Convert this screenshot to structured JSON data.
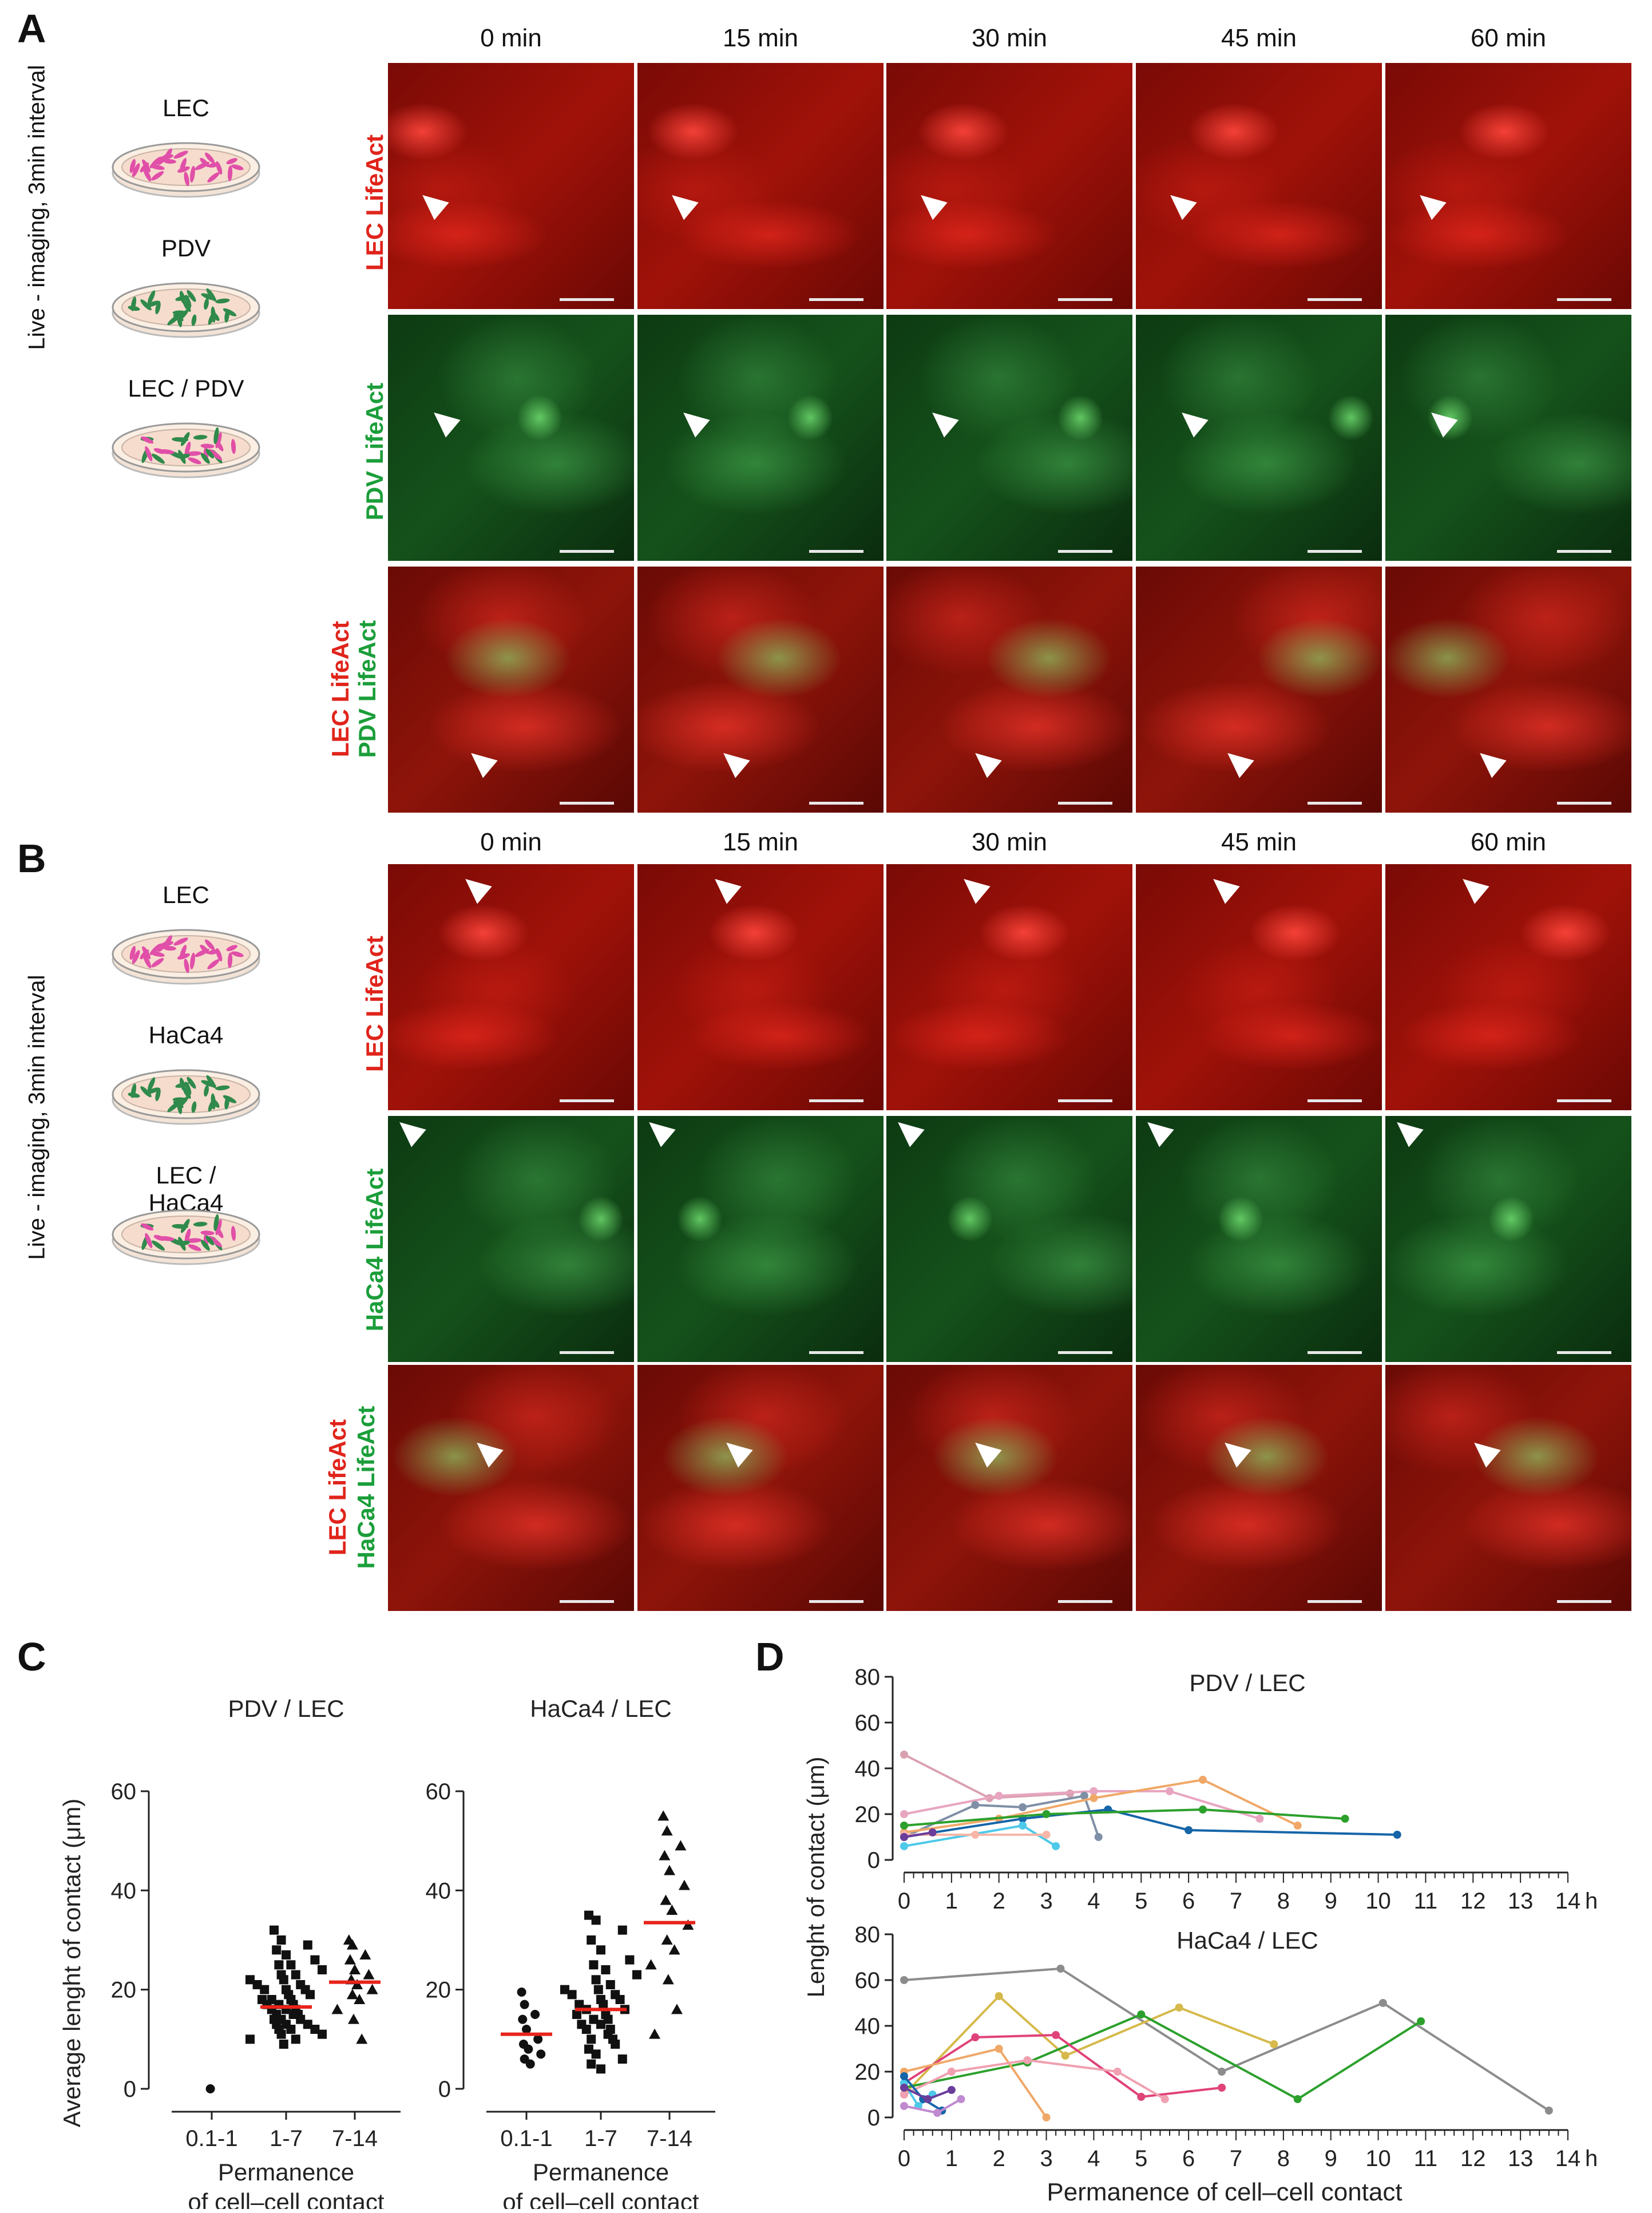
{
  "panels": {
    "A": {
      "label": "A",
      "side_caption": "Live - imaging, 3min interval",
      "dishes": [
        "LEC",
        "PDV",
        "LEC / PDV"
      ],
      "times": [
        "0 min",
        "15 min",
        "30 min",
        "45 min",
        "60 min"
      ],
      "rows": [
        {
          "label": "LEC LifeAct",
          "color": "#e0241b"
        },
        {
          "label": "PDV LifeAct",
          "color": "#1b9e3a"
        },
        {
          "label1": "LEC LifeAct",
          "label2": "PDV LifeAct",
          "color1": "#e0241b",
          "color2": "#1b9e3a"
        }
      ]
    },
    "B": {
      "label": "B",
      "side_caption": "Live - imaging, 3min interval",
      "dishes": [
        "LEC",
        "HaCa4",
        "LEC / HaCa4"
      ],
      "times": [
        "0 min",
        "15 min",
        "30 min",
        "45 min",
        "60 min"
      ],
      "rows": [
        {
          "label": "LEC LifeAct",
          "color": "#e0241b"
        },
        {
          "label": "HaCa4 LifeAct",
          "color": "#1b9e3a"
        },
        {
          "label1": "LEC LifeAct",
          "label2": "HaCa4 LifeAct",
          "color1": "#e0241b",
          "color2": "#1b9e3a"
        }
      ]
    },
    "C": {
      "label": "C"
    },
    "D": {
      "label": "D"
    }
  },
  "chart_data": [
    {
      "type": "scatter",
      "title": "PDV / LEC",
      "ylabel": "Average lenght of contact (μm)",
      "xlabel": "Permanence of cell–cell contact",
      "x_unit": "h",
      "categories": [
        "0.1-1",
        "1-7",
        "7-14"
      ],
      "ylim": [
        0,
        60
      ],
      "yticks": [
        0,
        20,
        40,
        60
      ],
      "means": [
        null,
        16.5,
        21.5
      ],
      "points": [
        [
          0
        ],
        [
          32,
          30,
          29,
          28,
          27,
          26,
          25,
          25,
          24,
          23,
          23,
          22,
          22,
          21,
          21,
          20,
          20,
          20,
          19,
          19,
          18,
          18,
          18,
          17,
          17,
          17,
          16,
          16,
          16,
          15,
          15,
          15,
          14,
          14,
          14,
          13,
          13,
          13,
          12,
          12,
          12,
          11,
          11,
          10,
          10,
          9
        ],
        [
          30,
          29,
          27,
          26,
          24,
          23,
          22,
          21,
          20,
          19,
          18,
          16,
          14,
          10
        ]
      ]
    },
    {
      "type": "scatter",
      "title": "HaCa4 / LEC",
      "xlabel": "Permanence of cell–cell contact",
      "x_unit": "h",
      "categories": [
        "0.1-1",
        "1-7",
        "7-14"
      ],
      "ylim": [
        0,
        60
      ],
      "yticks": [
        0,
        20,
        40,
        60
      ],
      "means": [
        11,
        16,
        33.5
      ],
      "points": [
        [
          19.5,
          17,
          15,
          14,
          12,
          10,
          9,
          8,
          7,
          6,
          5
        ],
        [
          35,
          34,
          32,
          30,
          28,
          26,
          25,
          24,
          23,
          22,
          21,
          20,
          20,
          19,
          19,
          18,
          18,
          17,
          17,
          16,
          16,
          15,
          15,
          14,
          14,
          13,
          13,
          12,
          12,
          11,
          10,
          10,
          9,
          8,
          7,
          6,
          5,
          4
        ],
        [
          55,
          52,
          49,
          47,
          44,
          41,
          38,
          36,
          33,
          30,
          28,
          25,
          22,
          16,
          11
        ]
      ]
    },
    {
      "type": "line",
      "title": "PDV / LEC",
      "ylim": [
        0,
        80
      ],
      "yticks": [
        0,
        20,
        40,
        60,
        80
      ],
      "xlim": [
        0,
        14
      ],
      "xticks": [
        0,
        1,
        2,
        3,
        4,
        5,
        6,
        7,
        8,
        9,
        10,
        11,
        12,
        13,
        14
      ],
      "x_unit": "h",
      "series": [
        {
          "color": "#d9a0b0",
          "x": [
            0,
            1.8,
            3.5
          ],
          "y": [
            46,
            27,
            29
          ]
        },
        {
          "color": "#e8a5c0",
          "x": [
            0,
            2,
            4,
            5.6,
            7.5
          ],
          "y": [
            20,
            28,
            30,
            30,
            18
          ]
        },
        {
          "color": "#7f8fa6",
          "x": [
            0,
            1.5,
            2.5,
            3.8,
            4.1
          ],
          "y": [
            10,
            24,
            23,
            28,
            10
          ]
        },
        {
          "color": "#f0a868",
          "x": [
            0,
            2,
            4,
            6.3,
            8.3
          ],
          "y": [
            12,
            18,
            27,
            35,
            15
          ]
        },
        {
          "color": "#1565a8",
          "x": [
            0,
            2.5,
            4.3,
            6,
            10.4
          ],
          "y": [
            10,
            18,
            22,
            13,
            11
          ]
        },
        {
          "color": "#2ca02c",
          "x": [
            0,
            3,
            6.3,
            9.3
          ],
          "y": [
            15,
            20,
            22,
            18
          ]
        },
        {
          "color": "#4ec9e9",
          "x": [
            0,
            2.5,
            3.2
          ],
          "y": [
            6,
            15,
            6
          ]
        },
        {
          "color": "#f7b6a8",
          "x": [
            0,
            1.5,
            3
          ],
          "y": [
            11,
            11,
            11
          ]
        },
        {
          "color": "#6a3d9a",
          "x": [
            0,
            0.6
          ],
          "y": [
            10,
            12
          ]
        }
      ]
    },
    {
      "type": "line",
      "title": "HaCa4 / LEC",
      "ylabel": "Lenght of contact (μm)",
      "xlabel": "Permanence of cell–cell contact",
      "ylim": [
        0,
        80
      ],
      "yticks": [
        0,
        20,
        40,
        60,
        80
      ],
      "xlim": [
        0,
        14
      ],
      "xticks": [
        0,
        1,
        2,
        3,
        4,
        5,
        6,
        7,
        8,
        9,
        10,
        11,
        12,
        13,
        14
      ],
      "x_unit": "h",
      "series": [
        {
          "color": "#8c8c8c",
          "x": [
            0,
            3.3,
            6.7,
            10.1,
            13.6
          ],
          "y": [
            60,
            65,
            20,
            50,
            3
          ]
        },
        {
          "color": "#d6b94a",
          "x": [
            0,
            2,
            3.4,
            5.8,
            7.8
          ],
          "y": [
            10,
            53,
            27,
            48,
            32
          ]
        },
        {
          "color": "#2ca02c",
          "x": [
            0,
            2.6,
            5,
            8.3,
            10.9
          ],
          "y": [
            13,
            24,
            45,
            8,
            42
          ]
        },
        {
          "color": "#e0427a",
          "x": [
            0,
            1.5,
            3.2,
            5,
            6.7
          ],
          "y": [
            15,
            35,
            36,
            9,
            13
          ]
        },
        {
          "color": "#f0a868",
          "x": [
            0,
            2,
            3
          ],
          "y": [
            20,
            30,
            0
          ]
        },
        {
          "color": "#f0a0b0",
          "x": [
            0,
            1,
            2.6,
            4.5,
            5.5
          ],
          "y": [
            10,
            20,
            25,
            20,
            8
          ]
        },
        {
          "color": "#4ec9e9",
          "x": [
            0,
            0.3,
            0.6
          ],
          "y": [
            15,
            5,
            10
          ]
        },
        {
          "color": "#1565a8",
          "x": [
            0,
            0.4,
            0.8
          ],
          "y": [
            18,
            8,
            3
          ]
        },
        {
          "color": "#6a3d9a",
          "x": [
            0,
            0.5,
            1
          ],
          "y": [
            13,
            8,
            12
          ]
        },
        {
          "color": "#c08ad0",
          "x": [
            0,
            0.7,
            1.2
          ],
          "y": [
            5,
            2,
            8
          ]
        }
      ]
    }
  ]
}
